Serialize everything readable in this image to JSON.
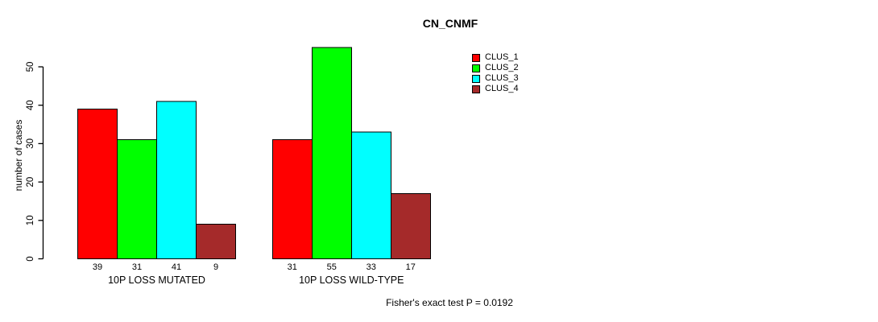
{
  "chart_data": {
    "type": "bar",
    "title": "CN_CNMF",
    "ylabel": "number of cases",
    "xlabel": "",
    "categories": [
      "10P LOSS MUTATED",
      "10P LOSS WILD-TYPE"
    ],
    "series": [
      {
        "name": "CLUS_1",
        "color": "#FF0000",
        "values": [
          39,
          31
        ]
      },
      {
        "name": "CLUS_2",
        "color": "#00FF00",
        "values": [
          31,
          55
        ]
      },
      {
        "name": "CLUS_3",
        "color": "#00FFFF",
        "values": [
          41,
          33
        ]
      },
      {
        "name": "CLUS_4",
        "color": "#A52A2A",
        "values": [
          9,
          17
        ]
      }
    ],
    "yticks": [
      0,
      10,
      20,
      30,
      40,
      50
    ],
    "ylim": [
      0,
      55
    ],
    "grid": false,
    "legend_position": "top-right",
    "bar_value_labels": true,
    "annotation": "Fisher's exact test P = 0.0192"
  }
}
